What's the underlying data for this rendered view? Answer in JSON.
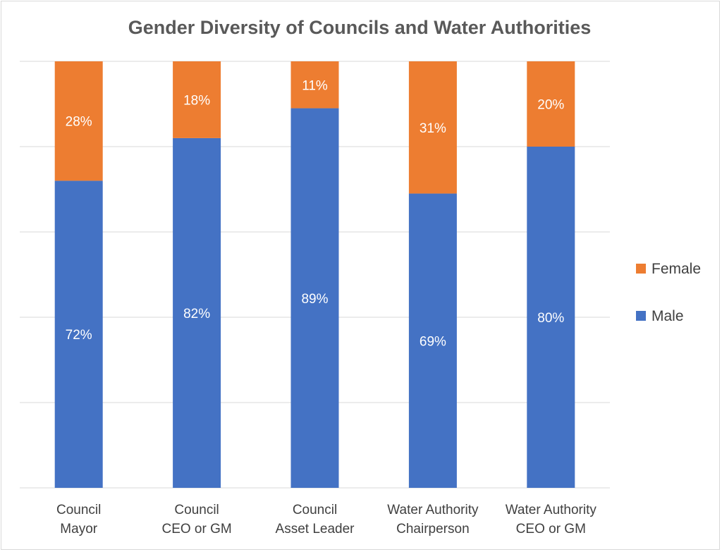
{
  "chart_data": {
    "type": "bar",
    "stacked": true,
    "percent_stacked": true,
    "title": "Gender Diversity of Councils and Water Authorities",
    "categories": [
      [
        "Council",
        "Mayor"
      ],
      [
        "Council",
        "CEO or GM"
      ],
      [
        "Council",
        "Asset Leader"
      ],
      [
        "Water Authority",
        "Chairperson"
      ],
      [
        "Water Authority",
        "CEO or GM"
      ]
    ],
    "series": [
      {
        "name": "Male",
        "color": "#4472c4",
        "values": [
          72,
          82,
          89,
          69,
          80
        ],
        "labels": [
          "72%",
          "82%",
          "89%",
          "69%",
          "80%"
        ]
      },
      {
        "name": "Female",
        "color": "#ed7d31",
        "values": [
          28,
          18,
          11,
          31,
          20
        ],
        "labels": [
          "28%",
          "18%",
          "11%",
          "31%",
          "20%"
        ]
      }
    ],
    "ylim": [
      0,
      100
    ],
    "grid": true,
    "legend": {
      "position": "right",
      "order": [
        "Female",
        "Male"
      ]
    }
  }
}
